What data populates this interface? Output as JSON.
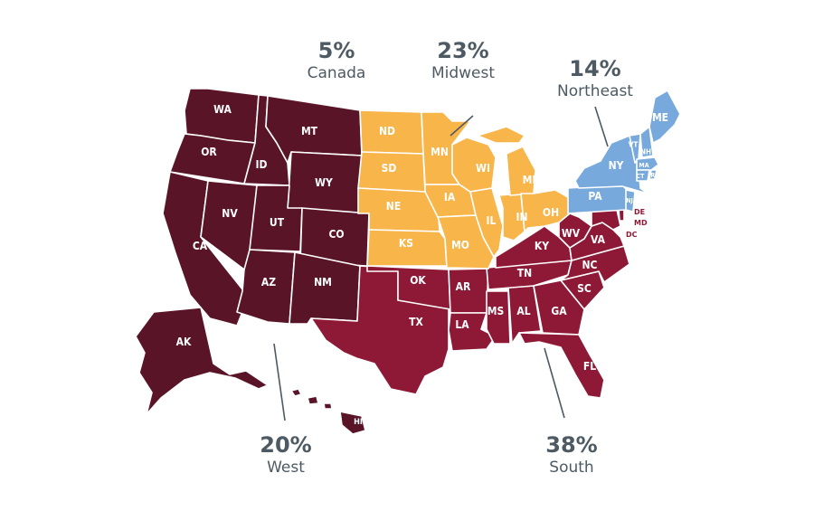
{
  "colors": {
    "west": "#5a1428",
    "south": "#8e1936",
    "midwest": "#f8b54a",
    "northeast": "#77a9dc",
    "canada_text": "#4d5a63",
    "leader": "#4d5a63"
  },
  "regions": {
    "canada": {
      "pct": "5%",
      "name": "Canada",
      "value": 5
    },
    "midwest": {
      "pct": "23%",
      "name": "Midwest",
      "value": 23
    },
    "northeast": {
      "pct": "14%",
      "name": "Northeast",
      "value": 14
    },
    "west": {
      "pct": "20%",
      "name": "West",
      "value": 20
    },
    "south": {
      "pct": "38%",
      "name": "South",
      "value": 38
    }
  },
  "states": {
    "west": [
      "WA",
      "OR",
      "CA",
      "ID",
      "NV",
      "MT",
      "WY",
      "UT",
      "CO",
      "AZ",
      "NM",
      "AK",
      "HI"
    ],
    "south": [
      "TX",
      "OK",
      "AR",
      "LA",
      "MS",
      "AL",
      "TN",
      "KY",
      "GA",
      "FL",
      "SC",
      "NC",
      "VA",
      "WV",
      "MD",
      "DE",
      "DC"
    ],
    "midwest": [
      "ND",
      "SD",
      "NE",
      "KS",
      "MN",
      "IA",
      "MO",
      "WI",
      "IL",
      "IN",
      "MI",
      "OH"
    ],
    "northeast": [
      "PA",
      "NY",
      "VT",
      "NH",
      "ME",
      "MA",
      "CT",
      "RI",
      "NJ"
    ]
  }
}
